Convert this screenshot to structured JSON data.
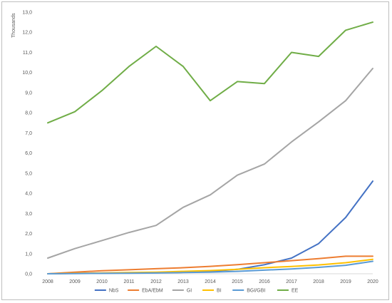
{
  "chart_data": {
    "type": "line",
    "title": "",
    "xlabel": "",
    "ylabel": "Thousands",
    "ylim": [
      0,
      13
    ],
    "y_tick_step": 1,
    "y_tick_labels": [
      "0,0",
      "1,0",
      "2,0",
      "3,0",
      "4,0",
      "5,0",
      "6,0",
      "7,0",
      "8,0",
      "9,0",
      "10,0",
      "11,0",
      "12,0",
      "13,0"
    ],
    "grid": false,
    "legend_position": "bottom",
    "x": [
      "2008",
      "2009",
      "2010",
      "2011",
      "2012",
      "2013",
      "2014",
      "2015",
      "2016",
      "2017",
      "2018",
      "2019",
      "2020"
    ],
    "series": [
      {
        "name": "NbS",
        "color": "#4472c4",
        "values": [
          0,
          0.02,
          0.03,
          0.04,
          0.05,
          0.07,
          0.12,
          0.22,
          0.45,
          0.78,
          1.5,
          2.8,
          4.6
        ]
      },
      {
        "name": "EbA/EbM",
        "color": "#ed7d31",
        "values": [
          0,
          0.08,
          0.15,
          0.2,
          0.25,
          0.3,
          0.37,
          0.45,
          0.55,
          0.65,
          0.75,
          0.87,
          0.87
        ]
      },
      {
        "name": "GI",
        "color": "#a5a5a5",
        "values": [
          0.78,
          1.25,
          1.65,
          2.05,
          2.4,
          3.3,
          3.92,
          4.9,
          5.45,
          6.55,
          7.55,
          8.6,
          10.2
        ]
      },
      {
        "name": "BI",
        "color": "#ffc000",
        "values": [
          0,
          0.02,
          0.04,
          0.06,
          0.08,
          0.12,
          0.16,
          0.22,
          0.3,
          0.36,
          0.44,
          0.55,
          0.72
        ]
      },
      {
        "name": "BGI/GBI",
        "color": "#5b9bd5",
        "values": [
          0,
          0.01,
          0.02,
          0.03,
          0.04,
          0.06,
          0.08,
          0.12,
          0.18,
          0.24,
          0.32,
          0.42,
          0.62
        ]
      },
      {
        "name": "EE",
        "color": "#70ad47",
        "values": [
          7.5,
          8.05,
          9.1,
          10.3,
          11.3,
          10.3,
          8.6,
          9.55,
          9.45,
          11.0,
          10.8,
          12.1,
          12.5
        ]
      }
    ]
  }
}
